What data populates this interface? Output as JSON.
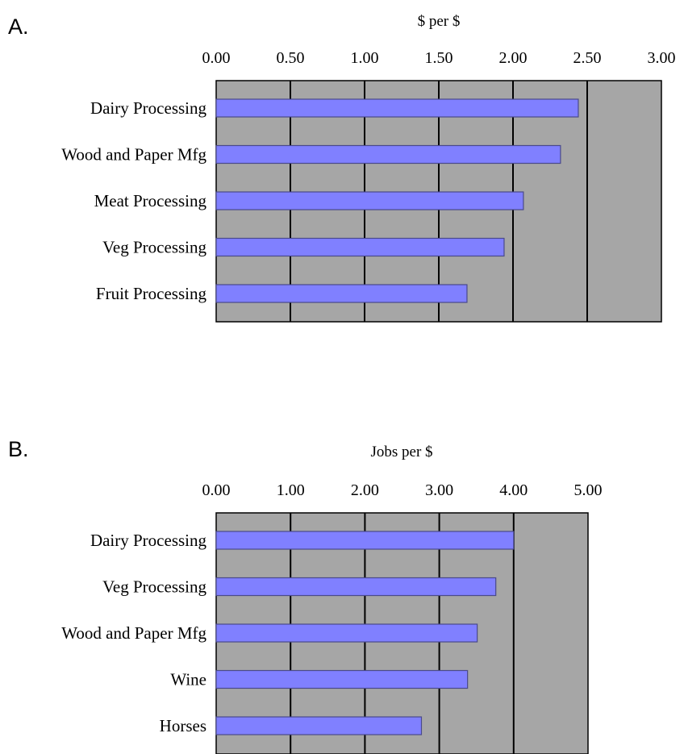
{
  "chart_data": [
    {
      "type": "bar",
      "orientation": "horizontal",
      "panel_label": "A.",
      "title": "",
      "xlabel": "$ per $",
      "ylabel": "",
      "xlim": [
        0,
        3
      ],
      "ticks": [
        "0.00",
        "0.50",
        "1.00",
        "1.50",
        "2.00",
        "2.50",
        "3.00"
      ],
      "categories": [
        "Dairy Processing",
        "Wood and Paper Mfg",
        "Meat Processing",
        "Veg Processing",
        "Fruit Processing"
      ],
      "values": [
        2.44,
        2.32,
        2.07,
        1.94,
        1.69
      ],
      "grid": true,
      "colors": {
        "bar": "#8080ff",
        "bar_stroke": "#4a4a8a",
        "plot_bg": "#a6a6a6",
        "grid": "#000000"
      }
    },
    {
      "type": "bar",
      "orientation": "horizontal",
      "panel_label": "B.",
      "title": "",
      "xlabel": "Jobs per $",
      "ylabel": "",
      "xlim": [
        0,
        5
      ],
      "ticks": [
        "0.00",
        "1.00",
        "2.00",
        "3.00",
        "4.00",
        "5.00"
      ],
      "categories": [
        "Dairy Processing",
        "Veg Processing",
        "Wood and Paper Mfg",
        "Wine",
        "Horses"
      ],
      "values": [
        4.0,
        3.76,
        3.51,
        3.38,
        2.76
      ],
      "grid": true,
      "colors": {
        "bar": "#8080ff",
        "bar_stroke": "#4a4a8a",
        "plot_bg": "#a6a6a6",
        "grid": "#000000"
      }
    }
  ]
}
